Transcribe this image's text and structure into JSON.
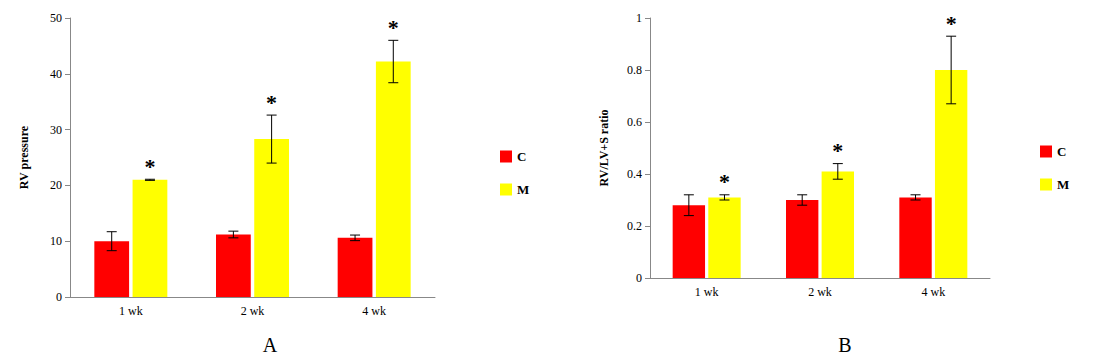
{
  "chart_data": [
    {
      "type": "bar",
      "title": "A",
      "y_label": "RV pressure",
      "categories": [
        "1 wk",
        "2 wk",
        "4 wk"
      ],
      "series": [
        {
          "name": "C",
          "color": "#ff0000",
          "values": [
            10,
            11.2,
            10.6
          ],
          "errors": [
            1.7,
            0.6,
            0.5
          ]
        },
        {
          "name": "M",
          "color": "#ffff00",
          "values": [
            21,
            28.3,
            42.2
          ],
          "errors": [
            0.1,
            4.3,
            3.8
          ]
        }
      ],
      "ylim": [
        0,
        50
      ],
      "yticks": [
        0,
        10,
        20,
        30,
        40,
        50
      ],
      "grid": false,
      "legend": "right",
      "annotations": [
        {
          "text": "*",
          "category": "1 wk",
          "series": "M"
        },
        {
          "text": "*",
          "category": "2 wk",
          "series": "M"
        },
        {
          "text": "*",
          "category": "4 wk",
          "series": "M"
        }
      ]
    },
    {
      "type": "bar",
      "title": "B",
      "y_label": "RV/LV+S ratio",
      "categories": [
        "1 wk",
        "2 wk",
        "4 wk"
      ],
      "series": [
        {
          "name": "C",
          "color": "#ff0000",
          "values": [
            0.28,
            0.3,
            0.31
          ],
          "errors": [
            0.04,
            0.02,
            0.01
          ]
        },
        {
          "name": "M",
          "color": "#ffff00",
          "values": [
            0.31,
            0.41,
            0.8
          ],
          "errors": [
            0.01,
            0.03,
            0.13
          ]
        }
      ],
      "ylim": [
        0,
        1
      ],
      "yticks": [
        0,
        0.2,
        0.4,
        0.6,
        0.8,
        1
      ],
      "grid": false,
      "legend": "right",
      "annotations": [
        {
          "text": "*",
          "category": "1 wk",
          "series": "M"
        },
        {
          "text": "*",
          "category": "2 wk",
          "series": "M"
        },
        {
          "text": "*",
          "category": "4 wk",
          "series": "M"
        }
      ]
    }
  ]
}
